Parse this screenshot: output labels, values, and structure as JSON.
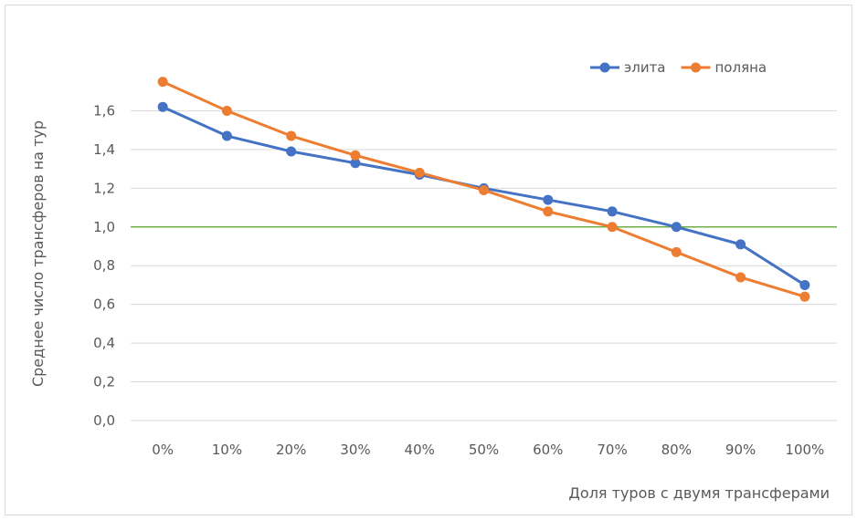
{
  "chart_data": {
    "type": "line",
    "title": "",
    "xlabel": "Доля туров с двумя трансферами",
    "ylabel": "Среднее  число трансферов на тур",
    "categories": [
      "0%",
      "10%",
      "20%",
      "30%",
      "40%",
      "50%",
      "60%",
      "70%",
      "80%",
      "90%",
      "100%"
    ],
    "ylim": [
      0,
      1.8
    ],
    "yticks": [
      "0,0",
      "0,2",
      "0,4",
      "0,6",
      "0,8",
      "1,0",
      "1,2",
      "1,4",
      "1,6"
    ],
    "grid": true,
    "legend_position": "top-right",
    "reference_line": {
      "y": 1.0,
      "color": "#70ad47"
    },
    "series": [
      {
        "name": "элита",
        "color": "#4472c4",
        "values": [
          1.62,
          1.47,
          1.39,
          1.33,
          1.27,
          1.2,
          1.14,
          1.08,
          1.0,
          0.91,
          0.7
        ]
      },
      {
        "name": "поляна",
        "color": "#ed7d31",
        "values": [
          1.75,
          1.6,
          1.47,
          1.37,
          1.28,
          1.19,
          1.08,
          1.0,
          0.87,
          0.74,
          0.64
        ]
      }
    ]
  }
}
